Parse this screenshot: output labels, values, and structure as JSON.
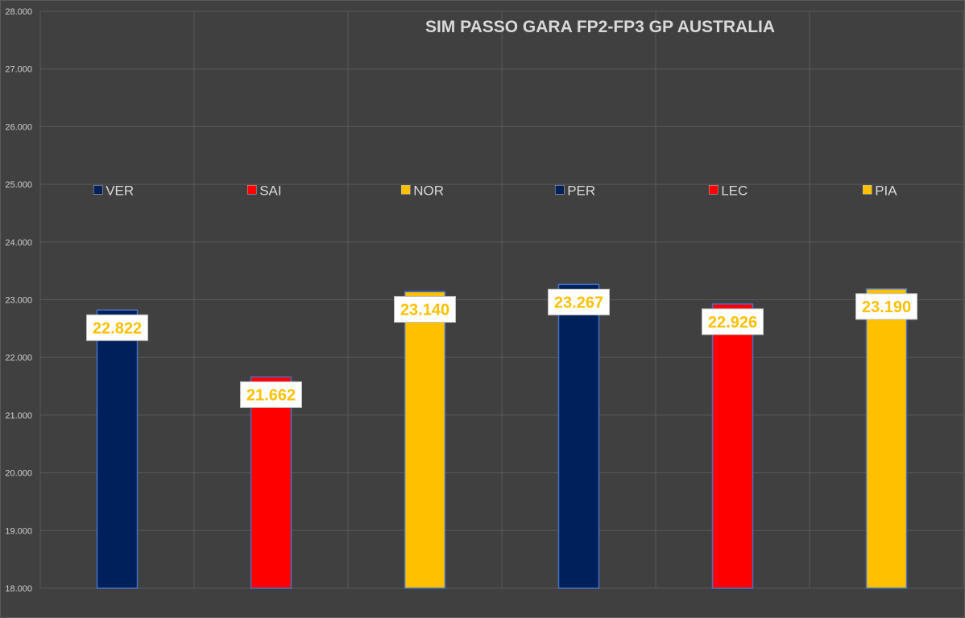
{
  "chart_data": {
    "type": "bar",
    "title": "SIM PASSO GARA FP2-FP3 GP AUSTRALIA",
    "categories": [
      "VER",
      "SAI",
      "NOR",
      "PER",
      "LEC",
      "PIA"
    ],
    "values": [
      22.822,
      21.662,
      23.14,
      23.267,
      22.926,
      23.19
    ],
    "value_labels": [
      "22.822",
      "21.662",
      "23.140",
      "23.267",
      "22.926",
      "23.190"
    ],
    "colors": [
      "#00205B",
      "#FF0000",
      "#FFC000",
      "#00205B",
      "#FF0000",
      "#FFC000"
    ],
    "ylim": [
      18,
      28
    ],
    "y_ticks": [
      "18.000",
      "19.000",
      "20.000",
      "21.000",
      "22.000",
      "23.000",
      "24.000",
      "25.000",
      "26.000",
      "27.000",
      "28.000"
    ],
    "legend_position": "center",
    "grid": true,
    "label_color": "#FFC000",
    "background": "#404040"
  }
}
